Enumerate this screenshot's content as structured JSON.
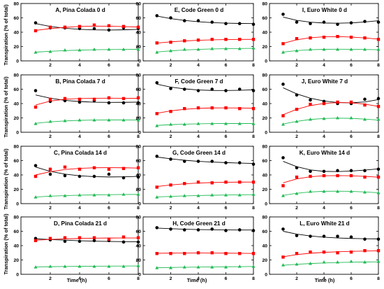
{
  "figure": {
    "ylabel": "Transpiration (% of total)",
    "xlabel": "Time (h)"
  },
  "chart_data": {
    "type": "scatter",
    "x": [
      1,
      2,
      3,
      4,
      5,
      6,
      7,
      8
    ],
    "xlim": [
      0,
      8
    ],
    "xticks": [
      2,
      4,
      6,
      8
    ],
    "ylim": [
      0,
      80
    ],
    "yticks": [
      0,
      20,
      40,
      60,
      80
    ],
    "xlabel": "Time (h)",
    "ylabel": "Transpiration (% of total)",
    "grid": false,
    "series_styles": [
      {
        "key": "black",
        "color": "#000000",
        "marker": "circle"
      },
      {
        "key": "red",
        "color": "#ff0000",
        "marker": "square"
      },
      {
        "key": "green",
        "color": "#22bb55",
        "marker": "triangle"
      }
    ],
    "panels": [
      {
        "title": "A, Pina Colada 0 d",
        "series": [
          {
            "values": [
              53,
              46,
              46,
              45,
              45,
              43,
              46,
              45
            ],
            "fit": [
              52,
              48,
              45.5,
              44,
              43.2,
              43,
              43.3,
              44
            ]
          },
          {
            "values": [
              42,
              47,
              47,
              48,
              50,
              49,
              48,
              47
            ],
            "fit": [
              42.5,
              45,
              46.8,
              48,
              48.5,
              48.4,
              47.9,
              47.2
            ]
          },
          {
            "values": [
              12,
              13,
              15,
              15,
              16,
              16,
              16,
              16
            ],
            "fit": [
              12.2,
              13.4,
              14.3,
              15,
              15.5,
              15.8,
              16,
              16.1
            ]
          }
        ]
      },
      {
        "title": "B, Pina Colada 7 d",
        "series": [
          {
            "values": [
              58,
              43,
              44,
              42,
              44,
              41,
              41,
              41
            ],
            "fit": [
              52,
              47.5,
              44.5,
              42.8,
              41.9,
              41.6,
              41.7,
              42
            ]
          },
          {
            "values": [
              35,
              46,
              47,
              46,
              46,
              48,
              47,
              48
            ],
            "fit": [
              38,
              43.5,
              46,
              47,
              47.4,
              47.5,
              47.4,
              47.2
            ]
          },
          {
            "values": [
              12,
              15,
              16,
              17,
              17,
              17,
              17,
              17
            ],
            "fit": [
              12.5,
              14.5,
              15.8,
              16.6,
              17,
              17.2,
              17.2,
              17.1
            ]
          }
        ]
      },
      {
        "title": "C, Pina Colada 14 d",
        "series": [
          {
            "values": [
              53,
              41,
              39,
              38,
              38,
              41,
              36,
              37
            ],
            "fit": [
              51,
              45,
              41.2,
              38.8,
              37.6,
              37.2,
              37.4,
              38
            ]
          },
          {
            "values": [
              38,
              48,
              51,
              48,
              50,
              48,
              49,
              50
            ],
            "fit": [
              40,
              44.5,
              47.5,
              49.2,
              50,
              50.2,
              50,
              49.6
            ]
          },
          {
            "values": [
              9,
              11,
              11,
              12,
              12,
              12,
              13,
              13
            ],
            "fit": [
              9.2,
              10.4,
              11.2,
              11.8,
              12.2,
              12.5,
              12.7,
              12.8
            ]
          }
        ]
      },
      {
        "title": "D, Pina Colada 21 d",
        "series": [
          {
            "values": [
              50,
              48,
              46,
              46,
              47,
              47,
              45,
              45
            ],
            "fit": [
              49.5,
              48.5,
              47.6,
              46.8,
              46.2,
              45.8,
              45.5,
              45.3
            ]
          },
          {
            "values": [
              47,
              50,
              51,
              51,
              51,
              49,
              52,
              51
            ],
            "fit": [
              47.5,
              48.6,
              49.4,
              50,
              50.4,
              50.6,
              50.7,
              50.7
            ]
          },
          {
            "values": [
              10,
              11,
              11,
              11,
              11,
              11,
              11,
              12
            ],
            "fit": [
              10.3,
              10.6,
              10.9,
              11.1,
              11.3,
              11.4,
              11.5,
              11.6
            ]
          }
        ]
      },
      {
        "title": "E, Code Green 0 d",
        "series": [
          {
            "values": [
              63,
              60,
              56,
              56,
              54,
              52,
              52,
              51
            ],
            "fit": [
              62.5,
              59,
              56.4,
              54.6,
              53.4,
              52.6,
              52.2,
              52
            ]
          },
          {
            "values": [
              25,
              26,
              28,
              29,
              30,
              30,
              30,
              30
            ],
            "fit": [
              24.8,
              26.5,
              27.8,
              28.7,
              29.3,
              29.7,
              29.9,
              30
            ]
          },
          {
            "values": [
              12,
              14,
              16,
              16,
              17,
              17,
              17,
              18
            ],
            "fit": [
              12.4,
              14,
              15.2,
              16,
              16.6,
              17,
              17.3,
              17.5
            ]
          }
        ]
      },
      {
        "title": "F, Code Green 7 d",
        "series": [
          {
            "values": [
              69,
              61,
              60,
              58,
              60,
              58,
              60,
              58
            ],
            "fit": [
              67,
              63,
              60.5,
              59,
              58.3,
              58.2,
              58.5,
              59.2
            ]
          },
          {
            "values": [
              26,
              29,
              33,
              34,
              34,
              34,
              33,
              33
            ],
            "fit": [
              26.5,
              29.8,
              32,
              33.3,
              33.9,
              34,
              33.8,
              33.4
            ]
          },
          {
            "values": [
              9,
              11,
              11,
              12,
              12,
              12,
              12,
              12
            ],
            "fit": [
              9.5,
              10.6,
              11.3,
              11.8,
              12.1,
              12.2,
              12.2,
              12.2
            ]
          }
        ]
      },
      {
        "title": "G, Code Green 14 d",
        "series": [
          {
            "values": [
              66,
              62,
              59,
              59,
              59,
              57,
              57,
              55
            ],
            "fit": [
              65,
              62.5,
              60.5,
              59,
              58,
              57.2,
              56.5,
              56
            ]
          },
          {
            "values": [
              23,
              26,
              28,
              30,
              29,
              30,
              30,
              30
            ],
            "fit": [
              23.8,
              26,
              27.6,
              28.7,
              29.4,
              29.8,
              30,
              30.1
            ]
          },
          {
            "values": [
              9,
              10,
              11,
              11,
              12,
              12,
              12,
              13
            ],
            "fit": [
              9.3,
              10.1,
              10.8,
              11.3,
              11.7,
              12,
              12.3,
              12.5
            ]
          }
        ]
      },
      {
        "title": "H, Code Green 21 d",
        "series": [
          {
            "values": [
              65,
              63,
              62,
              62,
              63,
              61,
              62,
              61
            ],
            "fit": [
              64.5,
              63.6,
              62.9,
              62.4,
              62.1,
              61.9,
              61.8,
              61.8
            ]
          },
          {
            "values": [
              29,
              29,
              29,
              30,
              30,
              29,
              29,
              29
            ],
            "fit": [
              29.3,
              29.5,
              29.6,
              29.7,
              29.6,
              29.5,
              29.3,
              29.1
            ]
          },
          {
            "values": [
              9,
              9,
              10,
              10,
              10,
              10,
              11,
              11
            ],
            "fit": [
              9.2,
              9.5,
              9.8,
              10.1,
              10.3,
              10.5,
              10.7,
              10.9
            ]
          }
        ]
      },
      {
        "title": "I, Euro White 0 d",
        "series": [
          {
            "values": [
              65,
              54,
              52,
              54,
              51,
              53,
              55,
              54
            ],
            "fit": [
              61,
              56.5,
              54,
              52.8,
              52.5,
              53,
              54.2,
              56
            ]
          },
          {
            "values": [
              24,
              31,
              32,
              33,
              34,
              33,
              32,
              30
            ],
            "fit": [
              24.5,
              29.5,
              32.3,
              33.6,
              33.8,
              33.2,
              32,
              30.3
            ]
          },
          {
            "values": [
              12,
              14,
              16,
              16,
              16,
              16,
              16,
              16
            ],
            "fit": [
              12.3,
              14.3,
              15.5,
              16.1,
              16.3,
              16.2,
              15.9,
              15.5
            ]
          }
        ]
      },
      {
        "title": "J, Euro White 7 d",
        "series": [
          {
            "values": [
              67,
              52,
              45,
              43,
              40,
              40,
              46,
              47
            ],
            "fit": [
              62,
              53.5,
              47.5,
              43.6,
              41.4,
              41,
              42.3,
              45.5
            ]
          },
          {
            "values": [
              23,
              32,
              39,
              40,
              42,
              42,
              38,
              36
            ],
            "fit": [
              24.5,
              32,
              37.2,
              40.2,
              41.4,
              41,
              39.2,
              36
            ]
          },
          {
            "values": [
              11,
              15,
              18,
              19,
              20,
              20,
              18,
              18
            ],
            "fit": [
              11.5,
              15.2,
              17.8,
              19.2,
              19.7,
              19.4,
              18.4,
              17
            ]
          }
        ]
      },
      {
        "title": "K, Euro White 14 d",
        "series": [
          {
            "values": [
              64,
              50,
              45,
              45,
              46,
              46,
              46,
              48
            ],
            "fit": [
              59,
              51.5,
              47,
              45,
              44.7,
              45.4,
              46.8,
              48.5
            ]
          },
          {
            "values": [
              25,
              37,
              38,
              39,
              39,
              39,
              37,
              37
            ],
            "fit": [
              29,
              34.5,
              37.5,
              38.8,
              39.1,
              38.8,
              38,
              36.9
            ]
          },
          {
            "values": [
              11,
              14,
              17,
              17,
              17,
              17,
              16,
              15
            ],
            "fit": [
              11.5,
              14.5,
              16.3,
              17.2,
              17.4,
              17.1,
              16.3,
              15.2
            ]
          }
        ]
      },
      {
        "title": "L, Euro White 21 d",
        "series": [
          {
            "values": [
              63,
              54,
              53,
              53,
              53,
              52,
              49,
              49
            ],
            "fit": [
              60,
              56,
              53.5,
              51.8,
              50.7,
              50,
              49.6,
              49.4
            ]
          },
          {
            "values": [
              24,
              29,
              31,
              31,
              30,
              31,
              33,
              33
            ],
            "fit": [
              24.5,
              27.5,
              29.4,
              30.6,
              31.4,
              32,
              32.4,
              32.7
            ]
          },
          {
            "values": [
              13,
              14,
              15,
              17,
              17,
              18,
              17,
              18
            ],
            "fit": [
              12.6,
              14,
              15,
              15.8,
              16.4,
              16.9,
              17.2,
              17.4
            ]
          }
        ]
      }
    ]
  }
}
